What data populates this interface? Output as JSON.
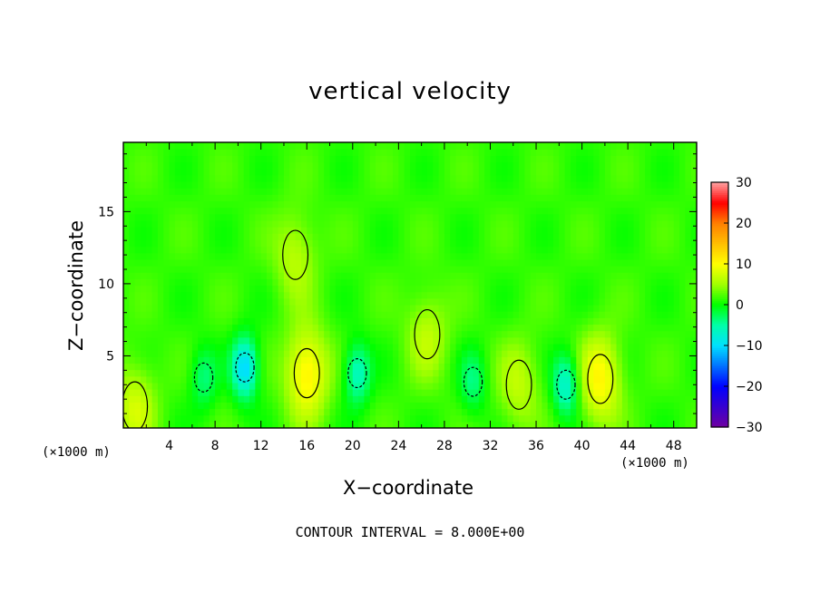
{
  "chart_data": {
    "type": "heatmap",
    "title": "vertical velocity",
    "xlabel": "X−coordinate",
    "ylabel": "Z−coordinate",
    "x_unit_left": "(×1000 m)",
    "x_unit_right": "(×1000 m)",
    "footer": "CONTOUR INTERVAL = 8.000E+00",
    "xlim": [
      0,
      50
    ],
    "ylim": [
      0,
      19.8
    ],
    "x_ticks": [
      4,
      8,
      12,
      16,
      20,
      24,
      28,
      32,
      36,
      40,
      44,
      48
    ],
    "x_tick_labels": [
      "4",
      "8",
      "12",
      "16",
      "20",
      "24",
      "28",
      "32",
      "36",
      "40",
      "44",
      "48"
    ],
    "y_ticks": [
      5,
      10,
      15
    ],
    "y_tick_labels": [
      "5",
      "10",
      "15"
    ],
    "colorbar": {
      "ticks": [
        30,
        20,
        10,
        0,
        -10,
        -20,
        -30
      ],
      "tick_labels": [
        "30",
        "20",
        "10",
        "0",
        "−10",
        "−20",
        "−30"
      ],
      "range": [
        -30,
        30
      ],
      "colors": [
        "#7000a0",
        "#0000ff",
        "#00c0ff",
        "#00ff80",
        "#00ff00",
        "#a0ff00",
        "#ffff00",
        "#ff8000",
        "#ff0000",
        "#ff9a9a"
      ]
    },
    "contour_interval": 8.0,
    "features": [
      {
        "kind": "updraft",
        "x": 16.0,
        "z": 3.8,
        "value": 10
      },
      {
        "kind": "updraft",
        "x": 41.6,
        "z": 3.4,
        "value": 9
      },
      {
        "kind": "updraft",
        "x": 34.5,
        "z": 3.0,
        "value": 5
      },
      {
        "kind": "updraft",
        "x": 1.0,
        "z": 1.5,
        "value": 6
      },
      {
        "kind": "updraft",
        "x": 15.0,
        "z": 12.0,
        "value": 5
      },
      {
        "kind": "updraft",
        "x": 26.5,
        "z": 6.5,
        "value": 5
      },
      {
        "kind": "downdraft",
        "x": 10.6,
        "z": 4.2,
        "value": -12
      },
      {
        "kind": "downdraft",
        "x": 20.4,
        "z": 3.8,
        "value": -8
      },
      {
        "kind": "downdraft",
        "x": 38.6,
        "z": 3.0,
        "value": -9
      },
      {
        "kind": "downdraft",
        "x": 7.0,
        "z": 3.5,
        "value": -5
      },
      {
        "kind": "downdraft",
        "x": 30.5,
        "z": 3.2,
        "value": -5
      }
    ]
  }
}
